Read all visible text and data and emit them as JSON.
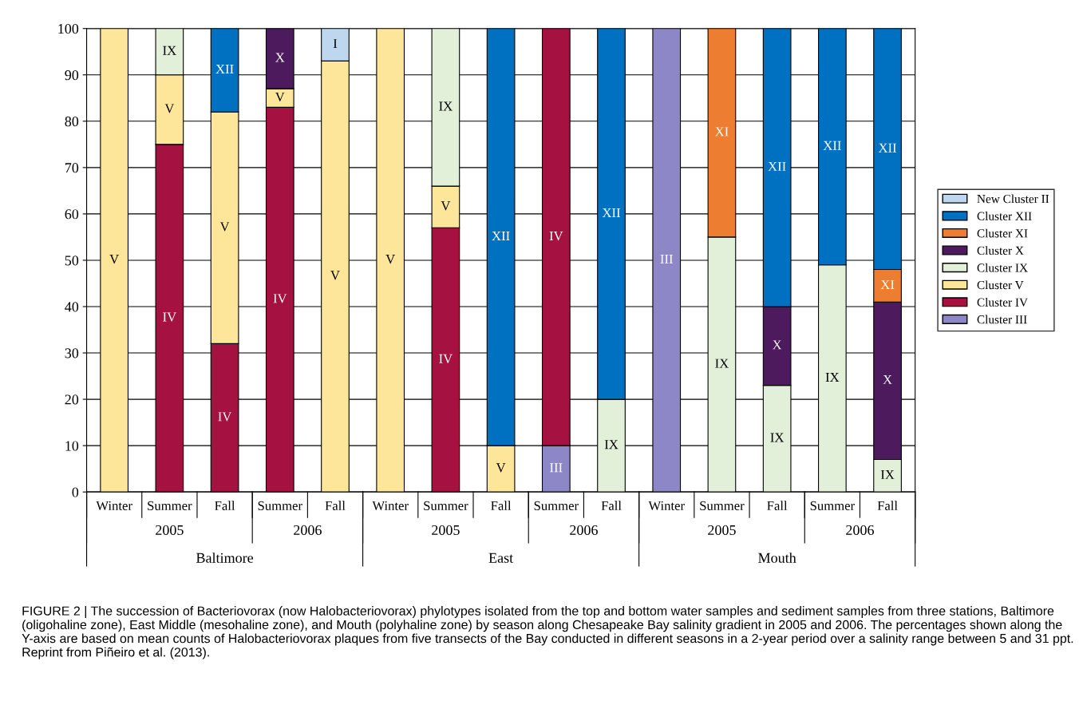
{
  "chart_data": {
    "type": "bar",
    "stacked": true,
    "categories": [
      "Winter",
      "Summer",
      "Fall",
      "Summer",
      "Fall",
      "Winter",
      "Summer",
      "Fall",
      "Summer",
      "Fall",
      "Winter",
      "Summer",
      "Fall",
      "Summer",
      "Fall"
    ],
    "ylim": [
      0,
      100
    ],
    "yticks": [
      0,
      10,
      20,
      30,
      40,
      50,
      60,
      70,
      80,
      90,
      100
    ],
    "grid": "y",
    "legend": "right",
    "series": [
      {
        "name": "Cluster III",
        "color": "#8d87c8",
        "values": [
          null,
          null,
          null,
          null,
          null,
          null,
          null,
          null,
          10,
          null,
          100,
          null,
          null,
          null,
          null
        ],
        "value_labels": [
          null,
          null,
          null,
          null,
          null,
          null,
          null,
          null,
          "III",
          null,
          "III",
          null,
          null,
          null,
          null
        ]
      },
      {
        "name": "Cluster IV",
        "color": "#a51140",
        "values": [
          null,
          75,
          32,
          83,
          null,
          null,
          57,
          null,
          90,
          null,
          null,
          null,
          null,
          null,
          null
        ],
        "value_labels": [
          null,
          "IV",
          "IV",
          "IV",
          null,
          null,
          "IV",
          null,
          "IV",
          null,
          null,
          null,
          null,
          null,
          null
        ]
      },
      {
        "name": "Cluster V",
        "color": "#fde59a",
        "values": [
          100,
          15,
          50,
          4,
          93,
          100,
          9,
          10,
          null,
          null,
          null,
          null,
          null,
          null,
          null
        ],
        "value_labels": [
          "V",
          "V",
          "V",
          "V",
          "V",
          "V",
          "V",
          "V",
          null,
          null,
          null,
          null,
          null,
          null,
          null
        ]
      },
      {
        "name": "Cluster IX",
        "color": "#e2efd9",
        "values": [
          null,
          10,
          null,
          null,
          null,
          null,
          34,
          null,
          null,
          20,
          null,
          55,
          23,
          49,
          7
        ],
        "value_labels": [
          null,
          "IX",
          null,
          null,
          null,
          null,
          "IX",
          null,
          null,
          "IX",
          null,
          "IX",
          "IX",
          "IX",
          "IX"
        ]
      },
      {
        "name": "Cluster X",
        "color": "#4d1a5e",
        "values": [
          null,
          null,
          null,
          13,
          null,
          null,
          null,
          null,
          null,
          null,
          null,
          null,
          17,
          null,
          34
        ],
        "value_labels": [
          null,
          null,
          null,
          "X",
          null,
          null,
          null,
          null,
          null,
          null,
          null,
          null,
          "X",
          null,
          "X"
        ]
      },
      {
        "name": "Cluster XI",
        "color": "#ed7d31",
        "values": [
          null,
          null,
          null,
          null,
          null,
          null,
          null,
          null,
          null,
          null,
          null,
          45,
          null,
          null,
          7
        ],
        "value_labels": [
          null,
          null,
          null,
          null,
          null,
          null,
          null,
          null,
          null,
          null,
          null,
          "XI",
          null,
          null,
          "XI"
        ]
      },
      {
        "name": "Cluster XII",
        "color": "#0070c0",
        "values": [
          null,
          null,
          18,
          null,
          null,
          null,
          null,
          90,
          null,
          80,
          null,
          null,
          60,
          51,
          52
        ],
        "value_labels": [
          null,
          null,
          "XII",
          null,
          null,
          null,
          null,
          "XII",
          null,
          "XII",
          null,
          null,
          "XII",
          "XII",
          "XII"
        ]
      },
      {
        "name": "New Cluster II",
        "color": "#bdd7ee",
        "values": [
          null,
          null,
          null,
          null,
          7,
          null,
          null,
          null,
          null,
          null,
          null,
          null,
          null,
          null,
          null
        ],
        "value_labels": [
          null,
          null,
          null,
          null,
          "I",
          null,
          null,
          null,
          null,
          null,
          null,
          null,
          null,
          null,
          null
        ]
      }
    ],
    "annotations": [
      "2005",
      "2006",
      "2005",
      "2006",
      "2005",
      "2006",
      "Baltimore",
      "East",
      "Mouth",
      "FIGURE 2 | The succession of Bacteriovorax (now Halobacteriovorax) phylotypes isolated from the top and bottom water samples and sediment samples from three stations, Baltimore (oligohaline zone), East Middle (mesohaline zone), and Mouth (polyhaline zone) by season along Chesapeake Bay salinity gradient in 2005 and 2006. The percentages shown along the Y-axis are based on mean counts of Halobacteriovorax plaques from five transects of the Bay conducted in different seasons in a 2-year period over a salinity range between 5 and 31 ppt. Reprint from Piñeiro et al. (2013)."
    ]
  }
}
